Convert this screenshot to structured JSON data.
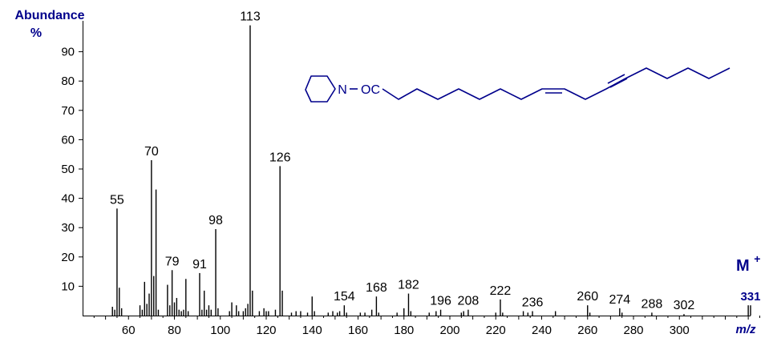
{
  "chart_data": {
    "type": "bar",
    "title": "",
    "ylabel": "Abundance",
    "ylabel_unit": "%",
    "xlabel": "m/z",
    "ylim": [
      0,
      100
    ],
    "xlim": [
      40,
      340
    ],
    "y_ticks": [
      10,
      20,
      30,
      40,
      50,
      60,
      70,
      80,
      90
    ],
    "x_ticks": [
      60,
      80,
      100,
      120,
      140,
      160,
      180,
      200,
      220,
      240,
      260,
      280,
      300
    ],
    "grid": false,
    "series_color": "#000000",
    "label_color": "#00008b",
    "molecular_ion": {
      "label": "M",
      "superscript": "+",
      "mz": 331
    },
    "peaks": [
      {
        "x": 53,
        "y": 3
      },
      {
        "x": 54,
        "y": 2
      },
      {
        "x": 55,
        "y": 36.5,
        "label": "55"
      },
      {
        "x": 56,
        "y": 9.5
      },
      {
        "x": 57,
        "y": 2.5
      },
      {
        "x": 65,
        "y": 3.5
      },
      {
        "x": 66,
        "y": 2
      },
      {
        "x": 67,
        "y": 11.5
      },
      {
        "x": 68,
        "y": 4
      },
      {
        "x": 69,
        "y": 7.5
      },
      {
        "x": 70,
        "y": 53,
        "label": "70"
      },
      {
        "x": 71,
        "y": 13.5
      },
      {
        "x": 72,
        "y": 43
      },
      {
        "x": 73,
        "y": 2
      },
      {
        "x": 77,
        "y": 10.5
      },
      {
        "x": 78,
        "y": 3.5
      },
      {
        "x": 79,
        "y": 15.5,
        "label": "79"
      },
      {
        "x": 80,
        "y": 4.5
      },
      {
        "x": 81,
        "y": 6
      },
      {
        "x": 82,
        "y": 2
      },
      {
        "x": 83,
        "y": 1.5
      },
      {
        "x": 84,
        "y": 2
      },
      {
        "x": 85,
        "y": 12.5
      },
      {
        "x": 86,
        "y": 1.5
      },
      {
        "x": 91,
        "y": 14.5,
        "label": "91"
      },
      {
        "x": 92,
        "y": 2
      },
      {
        "x": 93,
        "y": 8.5
      },
      {
        "x": 94,
        "y": 2
      },
      {
        "x": 95,
        "y": 3.5
      },
      {
        "x": 96,
        "y": 2
      },
      {
        "x": 98,
        "y": 29.5,
        "label": "98"
      },
      {
        "x": 99,
        "y": 2.5
      },
      {
        "x": 104,
        "y": 1.5
      },
      {
        "x": 105,
        "y": 4.5
      },
      {
        "x": 107,
        "y": 3.5
      },
      {
        "x": 108,
        "y": 1.5
      },
      {
        "x": 110,
        "y": 1.5
      },
      {
        "x": 111,
        "y": 2.5
      },
      {
        "x": 112,
        "y": 4
      },
      {
        "x": 113,
        "y": 99,
        "label": "113"
      },
      {
        "x": 114,
        "y": 8.5
      },
      {
        "x": 117,
        "y": 1.5
      },
      {
        "x": 119,
        "y": 2.5
      },
      {
        "x": 120,
        "y": 1.5
      },
      {
        "x": 121,
        "y": 1.5
      },
      {
        "x": 124,
        "y": 2
      },
      {
        "x": 126,
        "y": 51,
        "label": "126"
      },
      {
        "x": 127,
        "y": 8.5
      },
      {
        "x": 131,
        "y": 1
      },
      {
        "x": 133,
        "y": 1.5
      },
      {
        "x": 135,
        "y": 1.5
      },
      {
        "x": 138,
        "y": 1
      },
      {
        "x": 140,
        "y": 6.5
      },
      {
        "x": 141,
        "y": 1.5
      },
      {
        "x": 147,
        "y": 1
      },
      {
        "x": 149,
        "y": 1.5
      },
      {
        "x": 151,
        "y": 1
      },
      {
        "x": 152,
        "y": 1.5
      },
      {
        "x": 154,
        "y": 3.5,
        "label": "154"
      },
      {
        "x": 155,
        "y": 1
      },
      {
        "x": 161,
        "y": 1
      },
      {
        "x": 163,
        "y": 1
      },
      {
        "x": 166,
        "y": 2
      },
      {
        "x": 168,
        "y": 6.5,
        "label": "168"
      },
      {
        "x": 169,
        "y": 1
      },
      {
        "x": 177,
        "y": 1
      },
      {
        "x": 180,
        "y": 2.5
      },
      {
        "x": 182,
        "y": 7.5,
        "label": "182"
      },
      {
        "x": 183,
        "y": 1.5
      },
      {
        "x": 191,
        "y": 1
      },
      {
        "x": 194,
        "y": 1.5
      },
      {
        "x": 196,
        "y": 2,
        "label": "196"
      },
      {
        "x": 205,
        "y": 1
      },
      {
        "x": 206,
        "y": 1.5
      },
      {
        "x": 208,
        "y": 2,
        "label": "208"
      },
      {
        "x": 220,
        "y": 1
      },
      {
        "x": 222,
        "y": 5.5,
        "label": "222"
      },
      {
        "x": 223,
        "y": 1
      },
      {
        "x": 232,
        "y": 1.5
      },
      {
        "x": 234,
        "y": 1
      },
      {
        "x": 236,
        "y": 1.5,
        "label": "236"
      },
      {
        "x": 246,
        "y": 1.5
      },
      {
        "x": 260,
        "y": 3.5,
        "label": "260"
      },
      {
        "x": 261,
        "y": 1
      },
      {
        "x": 274,
        "y": 2.5,
        "label": "274"
      },
      {
        "x": 275,
        "y": 1
      },
      {
        "x": 288,
        "y": 1,
        "label": "288"
      },
      {
        "x": 302,
        "y": 0.5,
        "label": "302"
      },
      {
        "x": 330,
        "y": 3.5
      },
      {
        "x": 331,
        "y": 3.5,
        "label": "331",
        "label_highlight": true
      }
    ]
  },
  "structure": {
    "nitrogen_label": "N",
    "carbonyl_label": "OC",
    "color": "#00008b"
  }
}
